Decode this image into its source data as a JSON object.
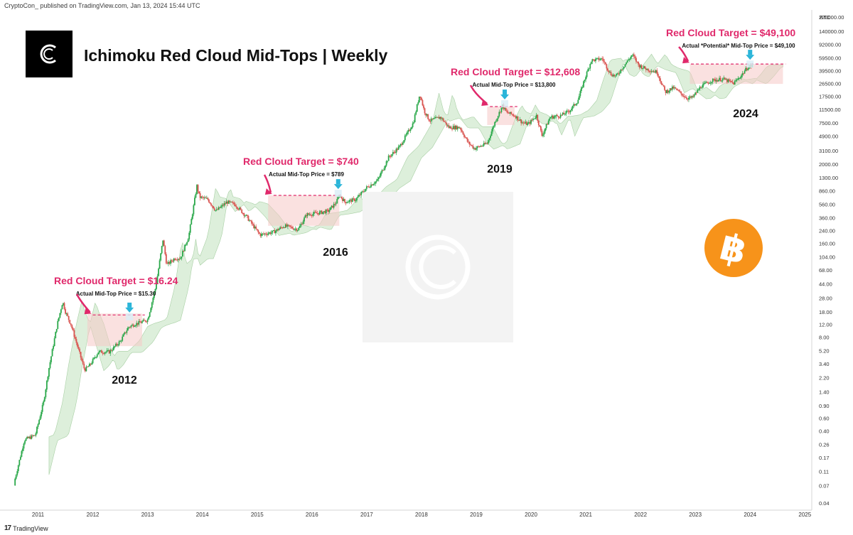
{
  "header": {
    "publish_line": "CryptoCon_ published on TradingView.com, Jan 13, 2024 15:44 UTC"
  },
  "footer": {
    "brand": "TradingView"
  },
  "colors": {
    "accent_pink": "#e0296b",
    "candle_up": "#2aa84a",
    "candle_down": "#d9534f",
    "red_cloud": "#f6c9c7",
    "green_cloud": "#d7ecd5",
    "marker_arrow": "#2bb5d9",
    "bitcoin_orange": "#f7931a"
  },
  "chart_data": {
    "type": "candlestick",
    "title": "Ichimoku Red Cloud Mid-Tops | Weekly",
    "logo": "CryptoCon logo",
    "currency_label": "BTC",
    "y_scale": "log",
    "y_ticks": [
      "220000.00",
      "140000.00",
      "92000.00",
      "59500.00",
      "39500.00",
      "26500.00",
      "17500.00",
      "11500.00",
      "7500.00",
      "4900.00",
      "3100.00",
      "2000.00",
      "1300.00",
      "860.00",
      "560.00",
      "360.00",
      "240.00",
      "160.00",
      "104.00",
      "68.00",
      "44.00",
      "28.00",
      "18.00",
      "12.00",
      "8.00",
      "5.20",
      "3.40",
      "2.20",
      "1.40",
      "0.90",
      "0.60",
      "0.40",
      "0.26",
      "0.17",
      "0.11",
      "0.07",
      "0.04"
    ],
    "x_ticks": [
      "2011",
      "2012",
      "2013",
      "2014",
      "2015",
      "2016",
      "2017",
      "2018",
      "2019",
      "2020",
      "2021",
      "2022",
      "2023",
      "2024",
      "2025"
    ],
    "price_path": [
      [
        2010.55,
        0.07
      ],
      [
        2010.75,
        0.3
      ],
      [
        2010.95,
        0.35
      ],
      [
        2011.1,
        1.0
      ],
      [
        2011.2,
        3.0
      ],
      [
        2011.35,
        12
      ],
      [
        2011.45,
        25
      ],
      [
        2011.5,
        18
      ],
      [
        2011.6,
        12
      ],
      [
        2011.75,
        5
      ],
      [
        2011.85,
        2.8
      ],
      [
        2011.95,
        3.3
      ],
      [
        2012.1,
        5
      ],
      [
        2012.3,
        5
      ],
      [
        2012.5,
        7
      ],
      [
        2012.65,
        11
      ],
      [
        2012.75,
        12
      ],
      [
        2012.9,
        13
      ],
      [
        2013.0,
        14
      ],
      [
        2013.15,
        40
      ],
      [
        2013.28,
        180
      ],
      [
        2013.35,
        80
      ],
      [
        2013.5,
        100
      ],
      [
        2013.6,
        100
      ],
      [
        2013.75,
        200
      ],
      [
        2013.9,
        1000
      ],
      [
        2013.95,
        700
      ],
      [
        2014.1,
        650
      ],
      [
        2014.25,
        450
      ],
      [
        2014.45,
        600
      ],
      [
        2014.6,
        550
      ],
      [
        2014.8,
        380
      ],
      [
        2015.05,
        210
      ],
      [
        2015.3,
        230
      ],
      [
        2015.5,
        280
      ],
      [
        2015.75,
        250
      ],
      [
        2015.9,
        400
      ],
      [
        2016.1,
        420
      ],
      [
        2016.3,
        450
      ],
      [
        2016.45,
        600
      ],
      [
        2016.5,
        750
      ],
      [
        2016.6,
        600
      ],
      [
        2016.8,
        650
      ],
      [
        2017.0,
        950
      ],
      [
        2017.2,
        1200
      ],
      [
        2017.4,
        2500
      ],
      [
        2017.6,
        3500
      ],
      [
        2017.75,
        5500
      ],
      [
        2017.85,
        7500
      ],
      [
        2017.97,
        19000
      ],
      [
        2018.05,
        11000
      ],
      [
        2018.15,
        8000
      ],
      [
        2018.35,
        9000
      ],
      [
        2018.5,
        6500
      ],
      [
        2018.7,
        6500
      ],
      [
        2018.85,
        4000
      ],
      [
        2018.97,
        3300
      ],
      [
        2019.2,
        3900
      ],
      [
        2019.35,
        8000
      ],
      [
        2019.48,
        13000
      ],
      [
        2019.55,
        10500
      ],
      [
        2019.7,
        9500
      ],
      [
        2019.85,
        7500
      ],
      [
        2019.95,
        7200
      ],
      [
        2020.1,
        9500
      ],
      [
        2020.2,
        5000
      ],
      [
        2020.35,
        9000
      ],
      [
        2020.55,
        9500
      ],
      [
        2020.7,
        11000
      ],
      [
        2020.85,
        15000
      ],
      [
        2020.97,
        29000
      ],
      [
        2021.1,
        55000
      ],
      [
        2021.3,
        58000
      ],
      [
        2021.45,
        36000
      ],
      [
        2021.55,
        33000
      ],
      [
        2021.7,
        47000
      ],
      [
        2021.85,
        66000
      ],
      [
        2021.97,
        47000
      ],
      [
        2022.1,
        42000
      ],
      [
        2022.3,
        38000
      ],
      [
        2022.45,
        20000
      ],
      [
        2022.6,
        23000
      ],
      [
        2022.85,
        16500
      ],
      [
        2022.95,
        16800
      ],
      [
        2023.1,
        24000
      ],
      [
        2023.3,
        29000
      ],
      [
        2023.5,
        30500
      ],
      [
        2023.7,
        26500
      ],
      [
        2023.85,
        35000
      ],
      [
        2023.95,
        44000
      ],
      [
        2024.04,
        47000
      ]
    ],
    "annotations": [
      {
        "year": "2012",
        "target_label": "Red Cloud Target = $16.24",
        "actual_label": "Actual Mid-Top Price = $15.30",
        "target_price": 16.24,
        "actual_price": 15.3
      },
      {
        "year": "2016",
        "target_label": "Red Cloud Target = $740",
        "actual_label": "Actual Mid-Top Price = $789",
        "target_price": 740,
        "actual_price": 789
      },
      {
        "year": "2019",
        "target_label": "Red Cloud Target = $12,608",
        "actual_label": "Actual Mid-Top Price = $13,800",
        "target_price": 12608,
        "actual_price": 13800
      },
      {
        "year": "2024",
        "target_label": "Red Cloud Target = $49,100",
        "actual_label": "Actual *Potential* Mid-Top Price = $49,100",
        "target_price": 49100,
        "actual_price": 49100
      }
    ]
  }
}
